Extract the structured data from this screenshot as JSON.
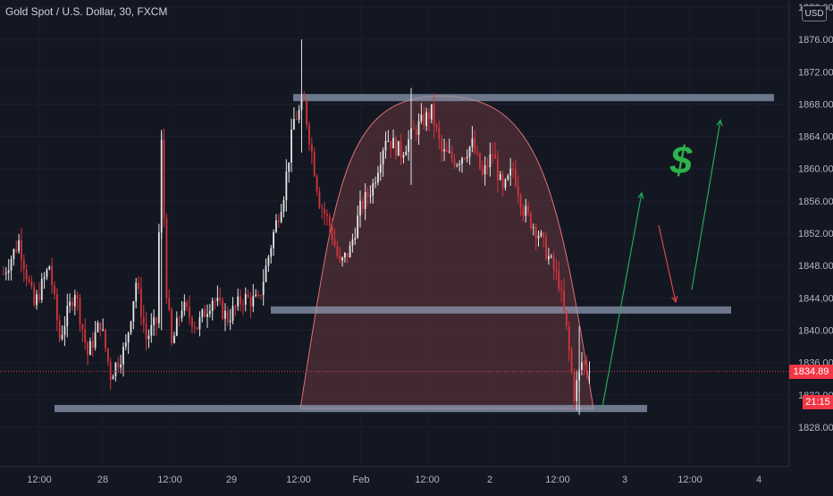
{
  "header": {
    "title": "Gold Spot / U.S. Dollar, 30, FXCM",
    "currency_button": "USD"
  },
  "price_tags": {
    "last_price": "1834.89",
    "countdown": "21:15"
  },
  "colors": {
    "background": "#131722",
    "up_candle": "#e6e6e6",
    "down_candle": "#d5353a",
    "axis_text": "#b2b5be",
    "support_resistance": "#8e9ab0",
    "cup_fill": "#7a3d45",
    "cup_stroke": "#e07075",
    "up_arrow": "#26a65b",
    "down_arrow": "#e04444",
    "price_line": "#f23645",
    "dollar_sign": "#2db34a"
  },
  "chart_data": {
    "type": "candlestick",
    "y_axis": {
      "ylim": [
        1826,
        1880
      ],
      "tick_labels": [
        "1828.00",
        "1832.00",
        "1836.00",
        "1840.00",
        "1844.00",
        "1848.00",
        "1852.00",
        "1856.00",
        "1860.00",
        "1864.00",
        "1868.00",
        "1872.00",
        "1876.00",
        "1880.00"
      ]
    },
    "x_axis": {
      "tick_labels": [
        "12:00",
        "28",
        "12:00",
        "29",
        "12:00",
        "Feb",
        "12:00",
        "2",
        "12:00",
        "3",
        "12:00",
        "4"
      ]
    },
    "last_price": 1834.89,
    "price_path_anchors": [
      [
        0,
        1847
      ],
      [
        6,
        1851
      ],
      [
        12,
        1843
      ],
      [
        18,
        1848
      ],
      [
        22,
        1839
      ],
      [
        28,
        1845
      ],
      [
        33,
        1837
      ],
      [
        38,
        1841
      ],
      [
        42,
        1834.5
      ],
      [
        48,
        1838
      ],
      [
        52,
        1846
      ],
      [
        56,
        1839
      ],
      [
        60,
        1841
      ],
      [
        62,
        1863
      ],
      [
        64,
        1845
      ],
      [
        66,
        1838
      ],
      [
        70,
        1843
      ],
      [
        76,
        1840.5
      ],
      [
        82,
        1844
      ],
      [
        88,
        1841.5
      ],
      [
        94,
        1844
      ],
      [
        100,
        1843.5
      ],
      [
        106,
        1852
      ],
      [
        110,
        1857
      ],
      [
        114,
        1866
      ],
      [
        118,
        1868
      ],
      [
        121,
        1862
      ],
      [
        124,
        1856
      ],
      [
        128,
        1853
      ],
      [
        132,
        1848
      ],
      [
        136,
        1850
      ],
      [
        140,
        1855
      ],
      [
        145,
        1858
      ],
      [
        150,
        1864
      ],
      [
        156,
        1862
      ],
      [
        162,
        1865
      ],
      [
        168,
        1867
      ],
      [
        172,
        1862
      ],
      [
        178,
        1861
      ],
      [
        184,
        1863
      ],
      [
        188,
        1859
      ],
      [
        192,
        1862
      ],
      [
        196,
        1857
      ],
      [
        200,
        1860
      ],
      [
        204,
        1855
      ],
      [
        210,
        1852
      ],
      [
        214,
        1849
      ],
      [
        218,
        1846
      ],
      [
        221,
        1840
      ],
      [
        224,
        1832
      ],
      [
        227,
        1836
      ],
      [
        230,
        1834.89
      ]
    ],
    "support_resistance_levels": [
      1868.8,
      1842.5,
      1830.3
    ],
    "cup_pattern": {
      "top": 1869,
      "base": 1830.3
    },
    "projection_arrows": [
      {
        "direction": "up",
        "from": 1830.5,
        "to": 1857
      },
      {
        "direction": "down",
        "from": 1853,
        "to": 1843.5
      },
      {
        "direction": "up",
        "from": 1845,
        "to": 1866
      }
    ],
    "annotation": "$"
  }
}
